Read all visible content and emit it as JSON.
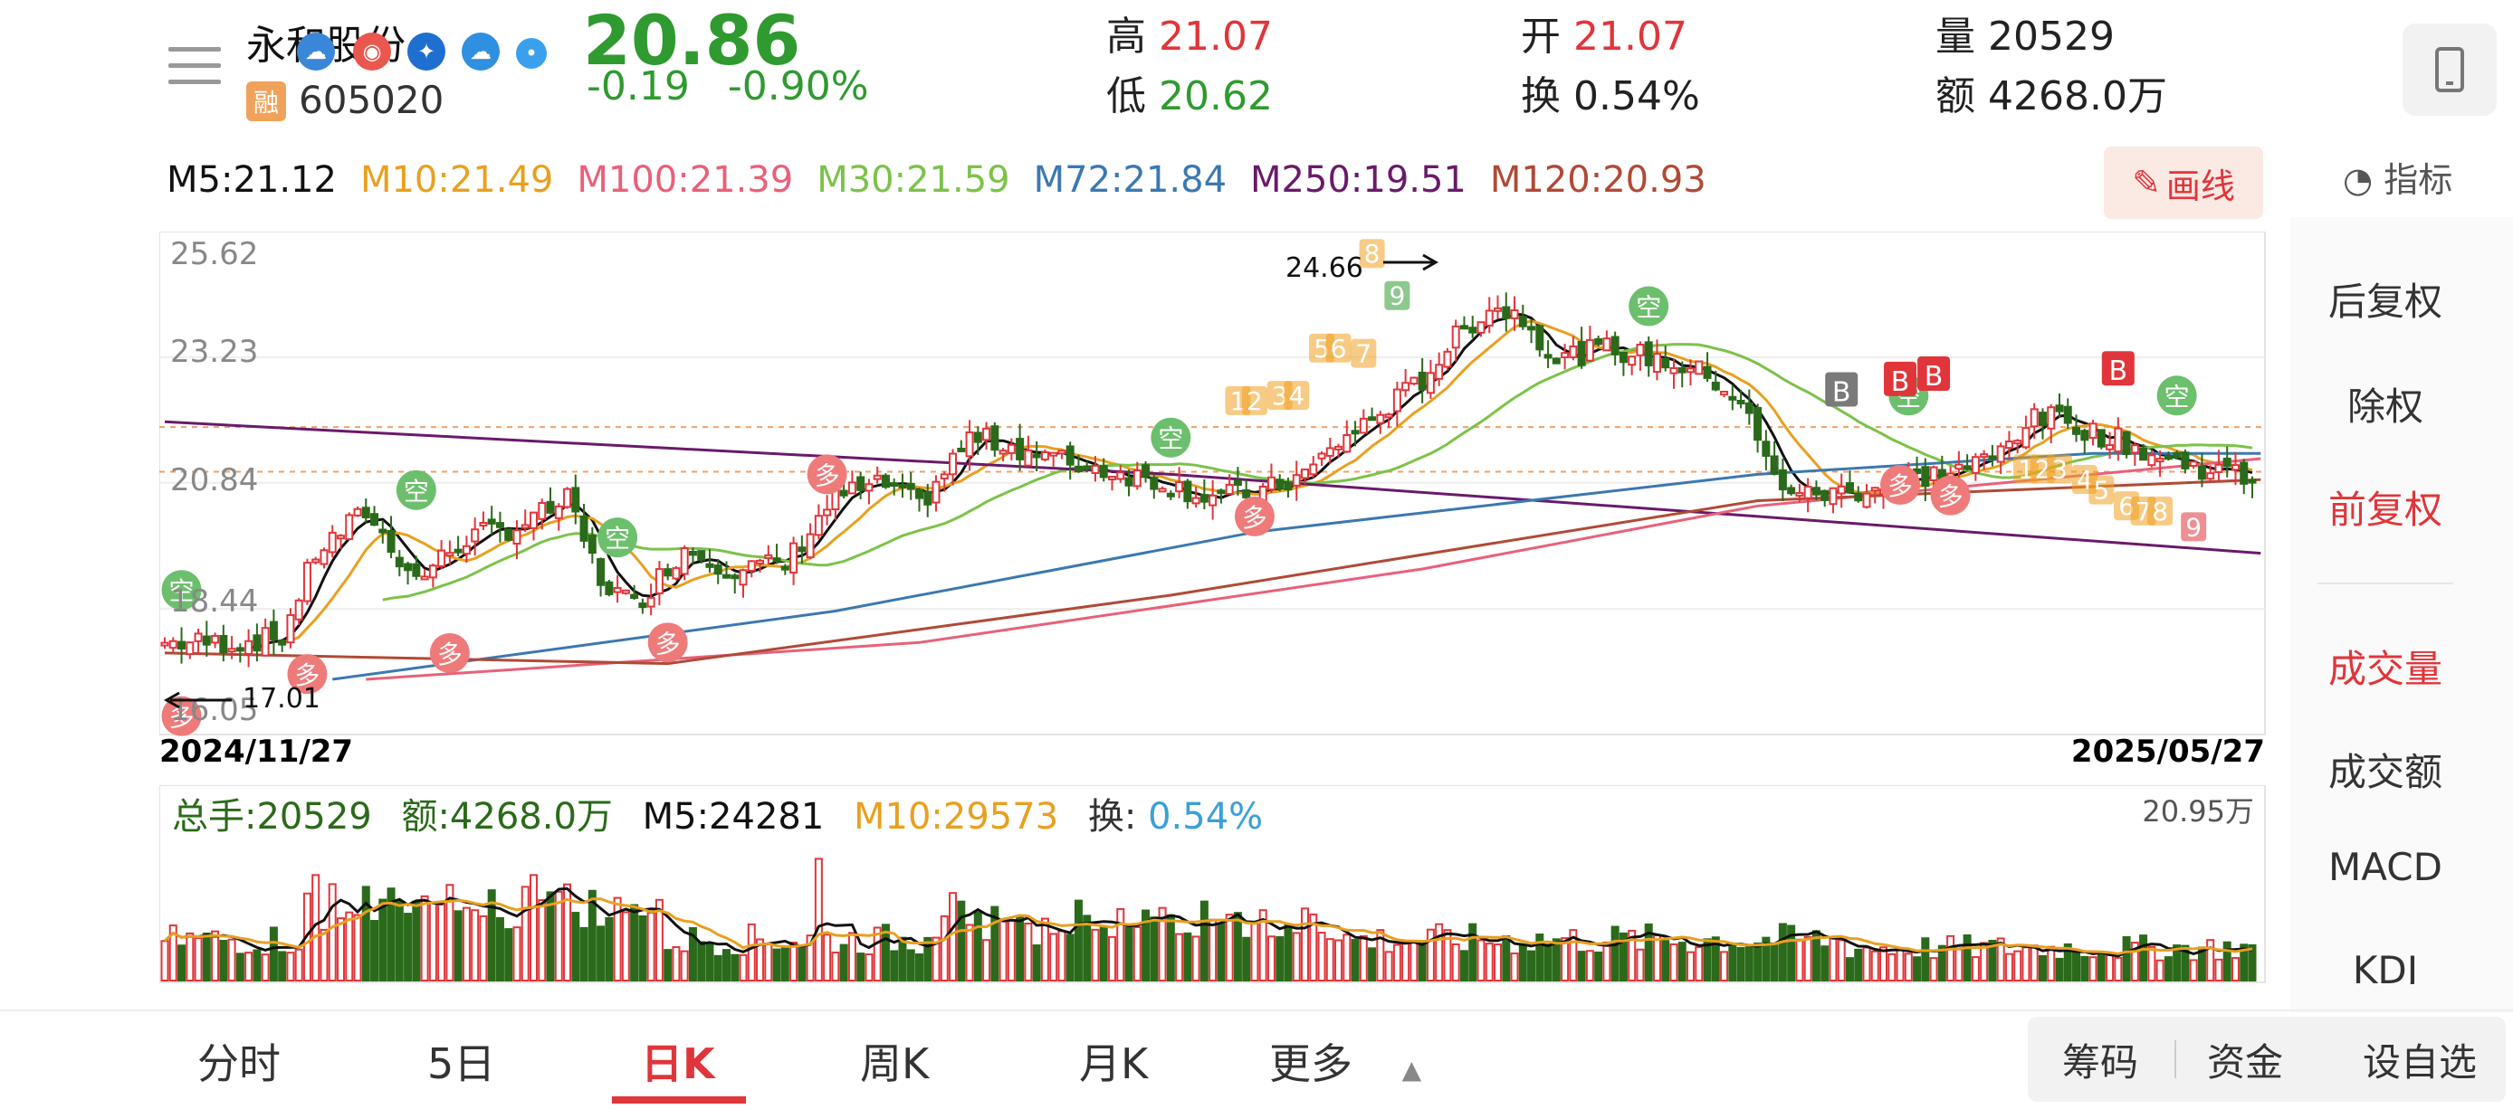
{
  "header": {
    "stock_name": "永和股份",
    "stock_code": "605020",
    "rong_label": "融",
    "price": "20.86",
    "change": "-0.19",
    "change_pct": "-0.90%",
    "high_label": "高",
    "high": "21.07",
    "low_label": "低",
    "low": "20.62",
    "open_label": "开",
    "open": "21.07",
    "turnover_label": "换",
    "turnover": "0.54%",
    "volume_label": "量",
    "volume": "20529",
    "amount_label": "额",
    "amount": "4268.0万"
  },
  "ma_row": {
    "m5": "M5:21.12",
    "m10": "M10:21.49",
    "m100": "M100:21.39",
    "m30": "M30:21.59",
    "m72": "M72:21.84",
    "m250": "M250:19.51",
    "m120": "M120:20.93"
  },
  "colors": {
    "m5": "#111111",
    "m10": "#e8a020",
    "m100": "#e8607a",
    "m30": "#7cc24a",
    "m72": "#3b78b0",
    "m250": "#6a1a6a",
    "m120": "#b04a36",
    "up": "#e0353a",
    "down": "#2a6a1a"
  },
  "draw_button": "画线",
  "indicator_button": "指标",
  "right_panel": [
    "后复权",
    "除权",
    "前复权",
    "成交量",
    "成交额",
    "MACD",
    "KDJ"
  ],
  "chart_data": {
    "type": "candlestick",
    "y_ticks": [
      "25.62",
      "23.23",
      "20.84",
      "18.44",
      "16.05"
    ],
    "ylim": [
      16.05,
      25.62
    ],
    "start_date": "2024/11/27",
    "end_date": "2025/05/27",
    "max_label": "24.66",
    "min_label": "17.01",
    "sell_labels": [
      "空",
      "空",
      "空",
      "空",
      "空",
      "空",
      "空"
    ],
    "buy_labels": [
      "多",
      "多",
      "多",
      "多",
      "多",
      "多",
      "多",
      "多"
    ],
    "b_labels": [
      "B",
      "B",
      "B",
      "B"
    ],
    "seq_labels": [
      "1",
      "2",
      "3",
      "4",
      "5",
      "6",
      "7",
      "8",
      "9"
    ],
    "volume": {
      "total": "总手:20529",
      "amount": "额:4268.0万",
      "m5": "M5:24281",
      "m10": "M10:29573",
      "turnover_label": "换:",
      "turnover": "0.54%",
      "max_label": "20.95万"
    }
  },
  "tabs": [
    "分时",
    "5日",
    "日K",
    "周K",
    "月K",
    "更多"
  ],
  "buttons": {
    "chips": "筹码",
    "funds": "资金",
    "watch": "设自选"
  }
}
